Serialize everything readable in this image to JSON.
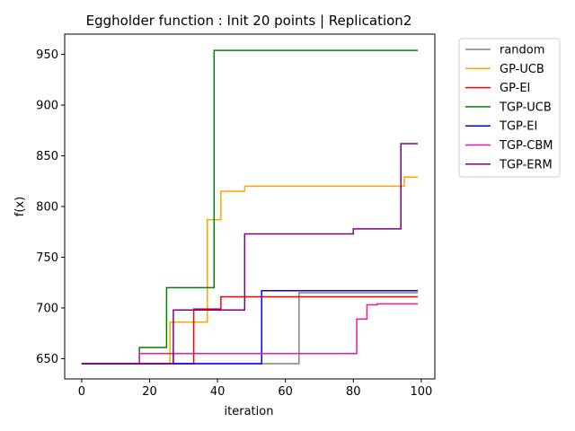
{
  "chart_data": {
    "type": "line",
    "title": "Eggholder function : Init 20 points | Replication2",
    "xlabel": "iteration",
    "ylabel": "f(x)",
    "xlim": [
      -5,
      104
    ],
    "ylim": [
      630,
      970
    ],
    "xticks": [
      0,
      20,
      40,
      60,
      80,
      100
    ],
    "yticks": [
      650,
      700,
      750,
      800,
      850,
      900,
      950
    ],
    "grid": false,
    "legend_position": "outside-upper-right",
    "series": [
      {
        "name": "random",
        "color": "#808080",
        "steps": [
          [
            0,
            645
          ],
          [
            17,
            655
          ],
          [
            26,
            655
          ],
          [
            27,
            645
          ],
          [
            63,
            645
          ],
          [
            64,
            715
          ],
          [
            99,
            715
          ]
        ]
      },
      {
        "name": "GP-UCB",
        "color": "#ffa500",
        "steps": [
          [
            0,
            645
          ],
          [
            26,
            686
          ],
          [
            36,
            686
          ],
          [
            37,
            787
          ],
          [
            40,
            787
          ],
          [
            41,
            815
          ],
          [
            47,
            815
          ],
          [
            48,
            820
          ],
          [
            94,
            820
          ],
          [
            95,
            829
          ],
          [
            99,
            829
          ]
        ]
      },
      {
        "name": "GP-EI",
        "color": "#ff0000",
        "steps": [
          [
            0,
            645
          ],
          [
            32,
            645
          ],
          [
            33,
            699
          ],
          [
            40,
            699
          ],
          [
            41,
            711
          ],
          [
            99,
            711
          ]
        ]
      },
      {
        "name": "TGP-UCB",
        "color": "#008000",
        "steps": [
          [
            0,
            645
          ],
          [
            17,
            661
          ],
          [
            24,
            661
          ],
          [
            25,
            720
          ],
          [
            38,
            720
          ],
          [
            39,
            954
          ],
          [
            99,
            954
          ]
        ]
      },
      {
        "name": "TGP-EI",
        "color": "#0000ff",
        "steps": [
          [
            0,
            645
          ],
          [
            52,
            645
          ],
          [
            53,
            717
          ],
          [
            99,
            717
          ]
        ]
      },
      {
        "name": "TGP-CBM",
        "color": "#ff1493",
        "steps": [
          [
            0,
            645
          ],
          [
            16,
            645
          ],
          [
            17,
            655
          ],
          [
            80,
            655
          ],
          [
            81,
            689
          ],
          [
            83,
            689
          ],
          [
            84,
            703
          ],
          [
            86,
            703
          ],
          [
            87,
            704
          ],
          [
            99,
            704
          ]
        ]
      },
      {
        "name": "TGP-ERM",
        "color": "#800080",
        "steps": [
          [
            0,
            645
          ],
          [
            26,
            645
          ],
          [
            27,
            698
          ],
          [
            47,
            698
          ],
          [
            48,
            773
          ],
          [
            79,
            773
          ],
          [
            80,
            778
          ],
          [
            93,
            778
          ],
          [
            94,
            862
          ],
          [
            99,
            862
          ]
        ]
      }
    ]
  }
}
